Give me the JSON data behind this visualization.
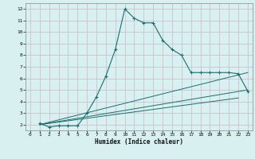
{
  "xlabel": "Humidex (Indice chaleur)",
  "background_color": "#d8f0f0",
  "grid_color": "#c8b8c8",
  "line_color": "#1a6e6e",
  "xlim": [
    -0.5,
    23.5
  ],
  "ylim": [
    1.5,
    12.5
  ],
  "xticks": [
    0,
    1,
    2,
    3,
    4,
    5,
    6,
    7,
    8,
    9,
    10,
    11,
    12,
    13,
    14,
    15,
    16,
    17,
    18,
    19,
    20,
    21,
    22,
    23
  ],
  "yticks": [
    2,
    3,
    4,
    5,
    6,
    7,
    8,
    9,
    10,
    11,
    12
  ],
  "main_x": [
    1,
    2,
    3,
    4,
    5,
    6,
    7,
    8,
    9,
    10,
    11,
    12,
    13,
    14,
    15,
    16,
    17,
    18,
    19,
    20,
    21,
    22,
    23
  ],
  "main_y": [
    2.1,
    1.8,
    1.9,
    1.9,
    1.9,
    3.0,
    4.4,
    6.2,
    8.5,
    12.0,
    11.2,
    10.8,
    10.8,
    9.3,
    8.5,
    8.0,
    6.5,
    6.5,
    6.5,
    6.5,
    6.5,
    6.4,
    4.9
  ],
  "line2_x": [
    1,
    23
  ],
  "line2_y": [
    2.0,
    6.5
  ],
  "line3_x": [
    1,
    23
  ],
  "line3_y": [
    2.0,
    5.0
  ],
  "line4_x": [
    1,
    22
  ],
  "line4_y": [
    2.0,
    4.3
  ]
}
